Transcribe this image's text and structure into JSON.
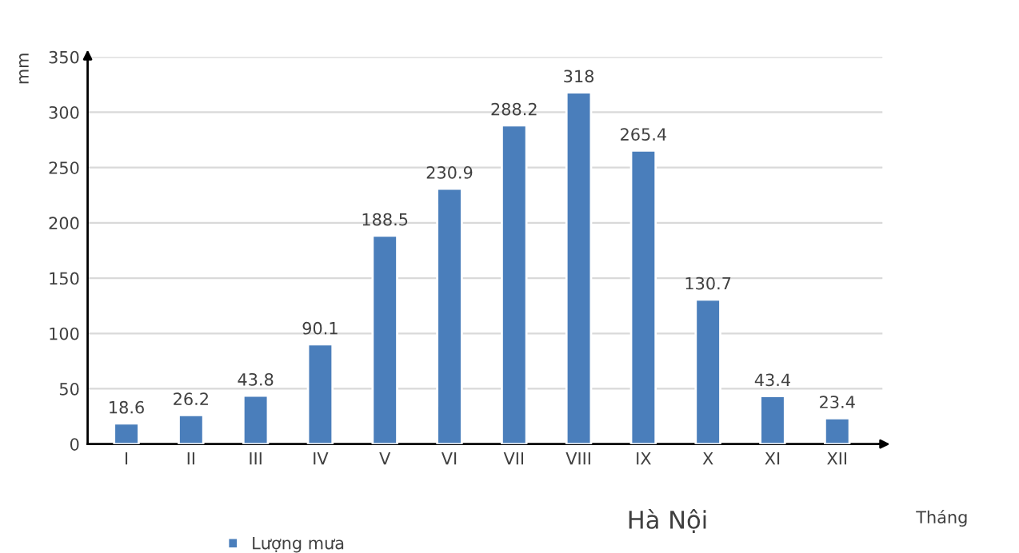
{
  "chart_data": {
    "type": "bar",
    "categories": [
      "I",
      "II",
      "III",
      "IV",
      "V",
      "VI",
      "VII",
      "VIII",
      "IX",
      "X",
      "XI",
      "XII"
    ],
    "series": [
      {
        "name": "Lượng mưa",
        "color": "#4a7ebb",
        "values": [
          18.6,
          26.2,
          43.8,
          90.1,
          188.5,
          230.9,
          288.2,
          318,
          265.4,
          130.7,
          43.4,
          23.4
        ]
      }
    ],
    "data_labels": true,
    "ylabel": "mm",
    "xlabel": "Tháng",
    "annotations": [
      "Hà Nội"
    ],
    "ylim": [
      0,
      350
    ],
    "yticks": [
      0,
      50,
      100,
      150,
      200,
      250,
      300,
      350
    ],
    "grid": "y",
    "legend": "bottom"
  }
}
